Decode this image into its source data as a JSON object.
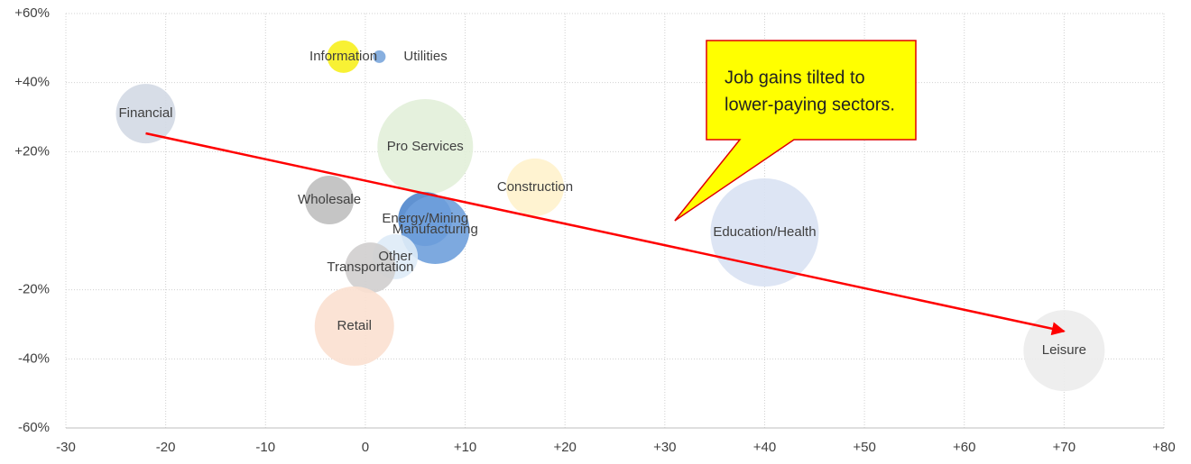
{
  "chart_data": {
    "type": "bubble",
    "series": [
      {
        "names": [
          "Information",
          "Utilities",
          "Financial",
          "Pro Services",
          "Construction",
          "Wholesale",
          "Energy/Mining",
          "Manufacturing",
          "Other",
          "Transportation",
          "Retail",
          "Education/Health",
          "Leisure"
        ],
        "x": [
          -2.2,
          1.4,
          -22,
          6,
          17,
          -3.6,
          6,
          7,
          3,
          0.5,
          -1.1,
          40,
          70
        ],
        "y": [
          47.5,
          47.5,
          31,
          21.4,
          9.7,
          6,
          0.5,
          -2.6,
          -10.4,
          -13.6,
          -30.5,
          -3.4,
          -37.6
        ],
        "sizes": [
          18,
          7,
          33,
          53,
          32,
          27,
          30,
          38,
          25,
          28,
          44,
          60,
          45
        ],
        "colors": [
          "#f7f01e",
          "#7aa6dc",
          "#d3d9e4",
          "#e2efd9",
          "#fff2cc",
          "#bfbfbf",
          "#4f86cc",
          "#6fa0dc",
          "#deebf7",
          "#d0cece",
          "#fbe0d0",
          "#d9e2f3",
          "#ececec"
        ]
      }
    ],
    "xlim": [
      -30,
      80
    ],
    "xticks": [
      -30,
      -20,
      -10,
      0,
      {
        "value": 10,
        "label": "+10"
      },
      {
        "value": 20,
        "label": "+20"
      },
      {
        "value": 30,
        "label": "+30"
      },
      {
        "value": 40,
        "label": "+40"
      },
      {
        "value": 50,
        "label": "+50"
      },
      {
        "value": 60,
        "label": "+60"
      },
      {
        "value": 70,
        "label": "+70"
      },
      {
        "value": 80,
        "label": "+80"
      }
    ],
    "ylim": [
      -60,
      60
    ],
    "yticks": [
      {
        "value": 60,
        "label": "+60%"
      },
      {
        "value": 40,
        "label": "+40%"
      },
      {
        "value": 20,
        "label": "+20%"
      },
      {
        "value": -20,
        "label": "-20%"
      },
      {
        "value": -40,
        "label": "-40%"
      },
      {
        "value": -60,
        "label": "-60%"
      }
    ],
    "grid": true,
    "trend": {
      "x": [
        -22,
        70
      ],
      "y": [
        25.3,
        -32
      ],
      "color": "#ff0000"
    },
    "annotation": {
      "lines": [
        "Job gains tilted to",
        "lower-paying sectors."
      ],
      "x": 31,
      "y": 0
    }
  }
}
